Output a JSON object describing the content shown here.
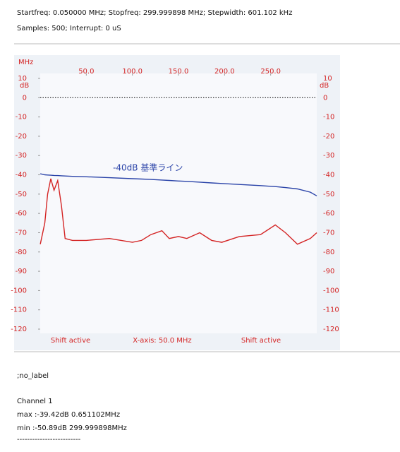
{
  "header": {
    "line1": "Startfreq: 0.050000 MHz; Stopfreq: 299.999898 MHz; Stepwidth: 601.102 kHz",
    "line2": "Samples:  500; Interrupt:    0 uS"
  },
  "chart_data": {
    "type": "line",
    "x_label": "MHz",
    "y_label": "dB",
    "xlim": [
      0,
      300
    ],
    "xticks": [
      {
        "value": 50,
        "label": "50.0"
      },
      {
        "value": 100,
        "label": "100.0"
      },
      {
        "value": 150,
        "label": "150.0"
      },
      {
        "value": 200,
        "label": "200.0"
      },
      {
        "value": 250,
        "label": "250.0"
      }
    ],
    "ylim": [
      -120,
      10
    ],
    "yticks": [
      10,
      0,
      -10,
      -20,
      -30,
      -40,
      -50,
      -60,
      -70,
      -80,
      -90,
      -100,
      -110,
      -120
    ],
    "reference_line": 0,
    "grid": false,
    "x": [
      0.05,
      5,
      8,
      11.5,
      15,
      19,
      23,
      27,
      35,
      50,
      75,
      100,
      110,
      120,
      132,
      140,
      150,
      159,
      173,
      186,
      197,
      216,
      239,
      255,
      266,
      279,
      293,
      299.999898
    ],
    "series": [
      {
        "name": "-40dB 基準ライン",
        "color": "#2a43a8",
        "values": [
          -39.42,
          -40,
          -40.1,
          -40.2,
          -40.3,
          -40.4,
          -40.5,
          -40.6,
          -40.8,
          -41,
          -41.5,
          -42,
          -42.2,
          -42.4,
          -42.7,
          -42.9,
          -43.2,
          -43.4,
          -43.8,
          -44.2,
          -44.5,
          -45,
          -45.6,
          -46.1,
          -46.6,
          -47.3,
          -49,
          -50.89
        ]
      },
      {
        "color": "#d42424",
        "values": [
          -76,
          -65,
          -50,
          -42,
          -48,
          -43,
          -56,
          -73,
          -74,
          -74,
          -73,
          -75,
          -74,
          -71,
          -69,
          -73,
          -72,
          -73,
          -70,
          -74,
          -75,
          -72,
          -71,
          -66,
          -70,
          -76,
          -73,
          -70
        ]
      }
    ],
    "annotations": [
      "Shift active",
      "X-axis: 50.0 MHz",
      "Shift active"
    ]
  },
  "report": {
    "label": ";no_label",
    "channel": "Channel 1",
    "max": "max :-39.42dB 0.651102MHz",
    "min": "min :-50.89dB 299.999898MHz",
    "separator": "-------------------------"
  }
}
